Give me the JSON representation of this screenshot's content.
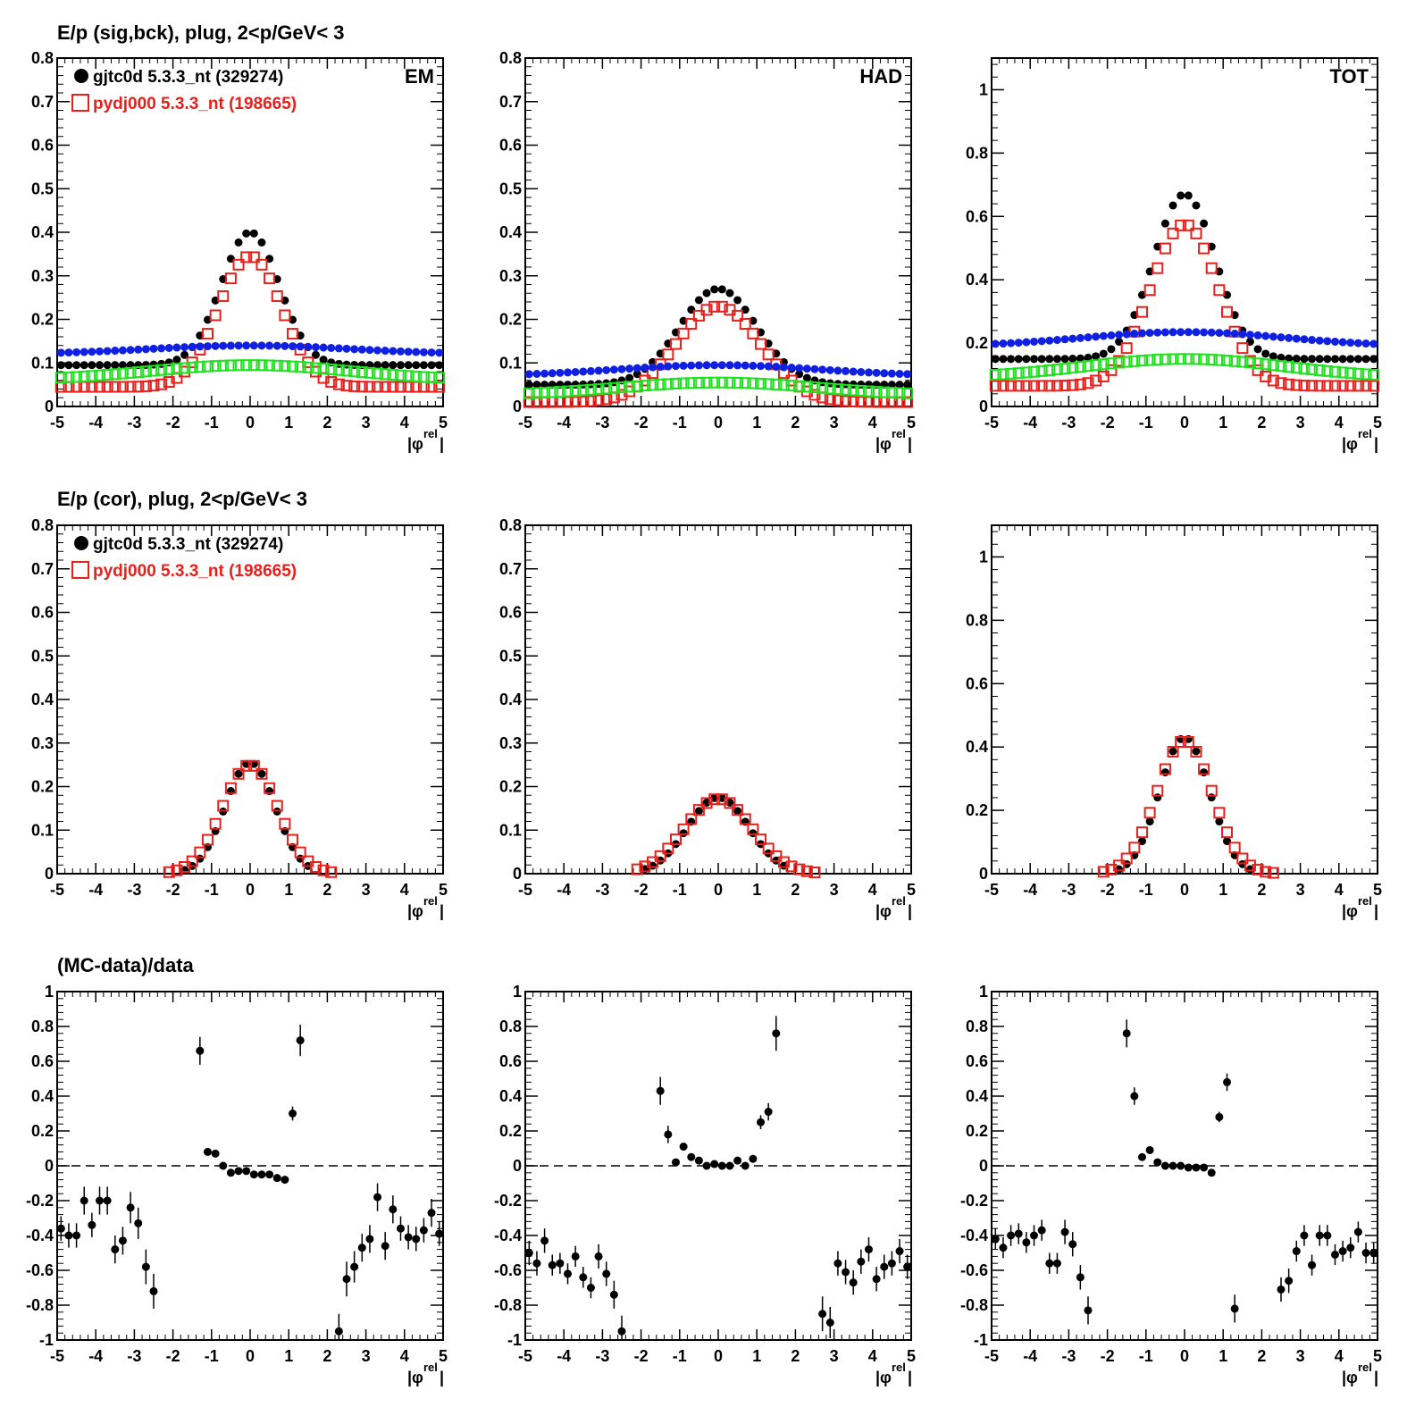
{
  "titles": {
    "row1": "E/p (sig,bck), plug,  2<p/GeV< 3",
    "row2": "E/p (cor), plug,  2<p/GeV< 3",
    "row3": "(MC-data)/data"
  },
  "legend": {
    "data_label": "gjtc0d 5.3.3_nt (329274)",
    "mc_label": "pydj000 5.3.3_nt (198665)"
  },
  "corner_labels": [
    "EM",
    "HAD",
    "TOT"
  ],
  "xlabel_main": "|φ",
  "xlabel_sup": "rel",
  "xlabel_close": "|",
  "colors": {
    "data": "#000000",
    "mc": "#e8201c",
    "bck_data": "#1020e0",
    "bck_mc": "#20e020"
  },
  "chart_data": [
    {
      "panel": "EM sig,bck",
      "type": "scatter",
      "xlim": [
        -5,
        5
      ],
      "ylim": [
        0,
        0.8
      ],
      "yticks": [
        "0",
        "0.1",
        "0.2",
        "0.3",
        "0.4",
        "0.5",
        "0.6",
        "0.7",
        "0.8"
      ],
      "xticks": [
        "-5",
        "-4",
        "-3",
        "-2",
        "-1",
        "0",
        "1",
        "2",
        "3",
        "4",
        "5"
      ],
      "series": [
        {
          "name": "gjtc0d 5.3.3_nt (329274)",
          "role": "data",
          "peak": 0.4,
          "width": 0.75,
          "base": 0.095,
          "baseEdge": 0.095
        },
        {
          "name": "pydj000 5.3.3_nt (198665)",
          "role": "mc",
          "peak": 0.345,
          "width": 0.82,
          "base": 0.045,
          "baseEdge": 0.045
        },
        {
          "role": "bck_data",
          "center": 0.14,
          "edge": 0.12
        },
        {
          "role": "bck_mc",
          "center": 0.095,
          "edge": 0.06
        }
      ]
    },
    {
      "panel": "HAD sig,bck",
      "type": "scatter",
      "xlim": [
        -5,
        5
      ],
      "ylim": [
        0,
        0.8
      ],
      "yticks": [
        "0",
        "0.1",
        "0.2",
        "0.3",
        "0.4",
        "0.5",
        "0.6",
        "0.7",
        "0.8"
      ],
      "xticks": [
        "-5",
        "-4",
        "-3",
        "-2",
        "-1",
        "0",
        "1",
        "2",
        "3",
        "4",
        "5"
      ],
      "series": [
        {
          "role": "data",
          "peak": 0.27,
          "width": 1.0,
          "base": 0.05,
          "baseEdge": 0.05
        },
        {
          "role": "mc",
          "peak": 0.23,
          "width": 1.1,
          "base": 0.01,
          "baseEdge": 0.01
        },
        {
          "role": "bck_data",
          "center": 0.095,
          "edge": 0.07
        },
        {
          "role": "bck_mc",
          "center": 0.055,
          "edge": 0.025
        }
      ]
    },
    {
      "panel": "TOT sig,bck",
      "type": "scatter",
      "xlim": [
        -5,
        5
      ],
      "ylim": [
        0,
        1.1
      ],
      "yticks": [
        "0",
        "0.2",
        "0.4",
        "0.6",
        "0.8",
        "1"
      ],
      "xticks": [
        "-5",
        "-4",
        "-3",
        "-2",
        "-1",
        "0",
        "1",
        "2",
        "3",
        "4",
        "5"
      ],
      "series": [
        {
          "role": "data",
          "peak": 0.67,
          "width": 0.8,
          "base": 0.15,
          "baseEdge": 0.15
        },
        {
          "role": "mc",
          "peak": 0.575,
          "width": 0.88,
          "base": 0.065,
          "baseEdge": 0.065
        },
        {
          "role": "bck_data",
          "center": 0.235,
          "edge": 0.19
        },
        {
          "role": "bck_mc",
          "center": 0.15,
          "edge": 0.09
        }
      ]
    },
    {
      "panel": "EM cor",
      "type": "scatter",
      "xlim": [
        -5,
        5
      ],
      "ylim": [
        0,
        0.8
      ],
      "yticks": [
        "0",
        "0.1",
        "0.2",
        "0.3",
        "0.4",
        "0.5",
        "0.6",
        "0.7",
        "0.8"
      ],
      "xticks": [
        "-5",
        "-4",
        "-3",
        "-2",
        "-1",
        "0",
        "1",
        "2",
        "3",
        "4",
        "5"
      ],
      "series": [
        {
          "role": "data",
          "peak": 0.255,
          "width": 0.65,
          "xmin": -1.8,
          "xmax": 1.7
        },
        {
          "role": "mc",
          "peak": 0.25,
          "width": 0.72,
          "xmin": -2.1,
          "xmax": 2.1
        }
      ]
    },
    {
      "panel": "HAD cor",
      "type": "scatter",
      "xlim": [
        -5,
        5
      ],
      "ylim": [
        0,
        0.8
      ],
      "yticks": [
        "0",
        "0.1",
        "0.2",
        "0.3",
        "0.4",
        "0.5",
        "0.6",
        "0.7",
        "0.8"
      ],
      "xticks": [
        "-5",
        "-4",
        "-3",
        "-2",
        "-1",
        "0",
        "1",
        "2",
        "3",
        "4",
        "5"
      ],
      "series": [
        {
          "role": "data",
          "peak": 0.175,
          "width": 0.8,
          "xmin": -2.0,
          "xmax": 1.9
        },
        {
          "role": "mc",
          "peak": 0.172,
          "width": 0.88,
          "xmin": -2.3,
          "xmax": 2.5
        }
      ]
    },
    {
      "panel": "TOT cor",
      "type": "scatter",
      "xlim": [
        -5,
        5
      ],
      "ylim": [
        0,
        1.1
      ],
      "yticks": [
        "0",
        "0.2",
        "0.4",
        "0.6",
        "0.8",
        "1"
      ],
      "xticks": [
        "-5",
        "-4",
        "-3",
        "-2",
        "-1",
        "0",
        "1",
        "2",
        "3",
        "4",
        "5"
      ],
      "series": [
        {
          "role": "data",
          "peak": 0.43,
          "width": 0.65,
          "xmin": -1.8,
          "xmax": 1.8
        },
        {
          "role": "mc",
          "peak": 0.42,
          "width": 0.72,
          "xmin": -2.3,
          "xmax": 2.3
        }
      ]
    },
    {
      "panel": "EM ratio",
      "type": "scatter",
      "xlim": [
        -5,
        5
      ],
      "ylim": [
        -1,
        1
      ],
      "yticks": [
        "-1",
        "-0.8",
        "-0.6",
        "-0.4",
        "-0.2",
        "0",
        "0.2",
        "0.4",
        "0.6",
        "0.8",
        "1"
      ],
      "xticks": [
        "-5",
        "-4",
        "-3",
        "-2",
        "-1",
        "0",
        "1",
        "2",
        "3",
        "4",
        "5"
      ],
      "x": [
        -4.9,
        -4.7,
        -4.5,
        -4.3,
        -4.1,
        -3.9,
        -3.7,
        -3.5,
        -3.3,
        -3.1,
        -2.9,
        -2.7,
        -2.5,
        -1.3,
        -1.1,
        -0.9,
        -0.7,
        -0.5,
        -0.3,
        -0.1,
        0.1,
        0.3,
        0.5,
        0.7,
        0.9,
        1.1,
        1.3,
        2.3,
        2.5,
        2.7,
        2.9,
        3.1,
        3.3,
        3.5,
        3.7,
        3.9,
        4.1,
        4.3,
        4.5,
        4.7,
        4.9
      ],
      "y": [
        -0.36,
        -0.4,
        -0.4,
        -0.2,
        -0.34,
        -0.2,
        -0.2,
        -0.48,
        -0.43,
        -0.24,
        -0.33,
        -0.58,
        -0.72,
        0.66,
        0.08,
        0.07,
        0.0,
        -0.04,
        -0.03,
        -0.03,
        -0.05,
        -0.05,
        -0.05,
        -0.07,
        -0.08,
        0.3,
        0.72,
        -0.95,
        -0.65,
        -0.58,
        -0.47,
        -0.42,
        -0.18,
        -0.46,
        -0.25,
        -0.36,
        -0.41,
        -0.42,
        -0.37,
        -0.27,
        -0.39
      ],
      "yerr": [
        0.07,
        0.07,
        0.07,
        0.08,
        0.07,
        0.08,
        0.08,
        0.08,
        0.08,
        0.09,
        0.09,
        0.1,
        0.1,
        0.08,
        0.02,
        0.02,
        0.01,
        0.01,
        0.01,
        0.01,
        0.01,
        0.01,
        0.01,
        0.01,
        0.01,
        0.04,
        0.09,
        0.1,
        0.1,
        0.09,
        0.08,
        0.08,
        0.08,
        0.08,
        0.08,
        0.07,
        0.07,
        0.07,
        0.07,
        0.08,
        0.07
      ]
    },
    {
      "panel": "HAD ratio",
      "type": "scatter",
      "xlim": [
        -5,
        5
      ],
      "ylim": [
        -1,
        1
      ],
      "yticks": [
        "-1",
        "-0.8",
        "-0.6",
        "-0.4",
        "-0.2",
        "0",
        "0.2",
        "0.4",
        "0.6",
        "0.8",
        "1"
      ],
      "xticks": [
        "-5",
        "-4",
        "-3",
        "-2",
        "-1",
        "0",
        "1",
        "2",
        "3",
        "4",
        "5"
      ],
      "x": [
        -4.9,
        -4.7,
        -4.5,
        -4.3,
        -4.1,
        -3.9,
        -3.7,
        -3.5,
        -3.3,
        -3.1,
        -2.9,
        -2.7,
        -2.5,
        -1.5,
        -1.3,
        -1.1,
        -0.9,
        -0.7,
        -0.5,
        -0.3,
        -0.1,
        0.1,
        0.3,
        0.5,
        0.7,
        0.9,
        1.1,
        1.3,
        1.5,
        2.7,
        2.9,
        3.1,
        3.3,
        3.5,
        3.7,
        3.9,
        4.1,
        4.3,
        4.5,
        4.7,
        4.9
      ],
      "y": [
        -0.5,
        -0.56,
        -0.43,
        -0.57,
        -0.56,
        -0.62,
        -0.52,
        -0.64,
        -0.7,
        -0.52,
        -0.62,
        -0.74,
        -0.95,
        0.43,
        0.18,
        0.02,
        0.11,
        0.05,
        0.03,
        0.0,
        0.01,
        0.0,
        0.0,
        0.03,
        0.0,
        0.04,
        0.25,
        0.31,
        0.76,
        -0.85,
        -0.9,
        -0.56,
        -0.61,
        -0.67,
        -0.55,
        -0.48,
        -0.65,
        -0.58,
        -0.56,
        -0.49,
        -0.58
      ],
      "yerr": [
        0.07,
        0.07,
        0.07,
        0.06,
        0.06,
        0.06,
        0.06,
        0.06,
        0.06,
        0.07,
        0.07,
        0.08,
        0.09,
        0.08,
        0.05,
        0.02,
        0.02,
        0.02,
        0.01,
        0.01,
        0.01,
        0.01,
        0.01,
        0.01,
        0.02,
        0.02,
        0.04,
        0.05,
        0.1,
        0.1,
        0.09,
        0.07,
        0.07,
        0.07,
        0.07,
        0.07,
        0.07,
        0.07,
        0.07,
        0.07,
        0.07
      ]
    },
    {
      "panel": "TOT ratio",
      "type": "scatter",
      "xlim": [
        -5,
        5
      ],
      "ylim": [
        -1,
        1
      ],
      "yticks": [
        "-1",
        "-0.8",
        "-0.6",
        "-0.4",
        "-0.2",
        "0",
        "0.2",
        "0.4",
        "0.6",
        "0.8",
        "1"
      ],
      "xticks": [
        "-5",
        "-4",
        "-3",
        "-2",
        "-1",
        "0",
        "1",
        "2",
        "3",
        "4",
        "5"
      ],
      "x": [
        -4.9,
        -4.7,
        -4.5,
        -4.3,
        -4.1,
        -3.9,
        -3.7,
        -3.5,
        -3.3,
        -3.1,
        -2.9,
        -2.7,
        -2.5,
        -1.5,
        -1.3,
        -1.1,
        -0.9,
        -0.7,
        -0.5,
        -0.3,
        -0.1,
        0.1,
        0.3,
        0.5,
        0.7,
        0.9,
        1.1,
        1.3,
        2.5,
        2.7,
        2.9,
        3.1,
        3.3,
        3.5,
        3.7,
        3.9,
        4.1,
        4.3,
        4.5,
        4.7,
        4.9
      ],
      "y": [
        -0.42,
        -0.47,
        -0.4,
        -0.39,
        -0.44,
        -0.4,
        -0.37,
        -0.56,
        -0.56,
        -0.38,
        -0.45,
        -0.64,
        -0.83,
        0.76,
        0.4,
        0.05,
        0.09,
        0.02,
        0.0,
        0.0,
        0.0,
        -0.01,
        -0.01,
        -0.01,
        -0.04,
        0.28,
        0.48,
        -0.82,
        -0.71,
        -0.66,
        -0.49,
        -0.4,
        -0.57,
        -0.4,
        -0.4,
        -0.51,
        -0.49,
        -0.47,
        -0.38,
        -0.5,
        -0.5
      ],
      "yerr": [
        0.06,
        0.06,
        0.06,
        0.06,
        0.06,
        0.06,
        0.06,
        0.06,
        0.06,
        0.07,
        0.07,
        0.07,
        0.08,
        0.08,
        0.05,
        0.02,
        0.01,
        0.01,
        0.01,
        0.01,
        0.01,
        0.01,
        0.01,
        0.01,
        0.02,
        0.03,
        0.05,
        0.08,
        0.07,
        0.07,
        0.06,
        0.06,
        0.06,
        0.06,
        0.06,
        0.06,
        0.06,
        0.06,
        0.06,
        0.06,
        0.06
      ]
    }
  ]
}
